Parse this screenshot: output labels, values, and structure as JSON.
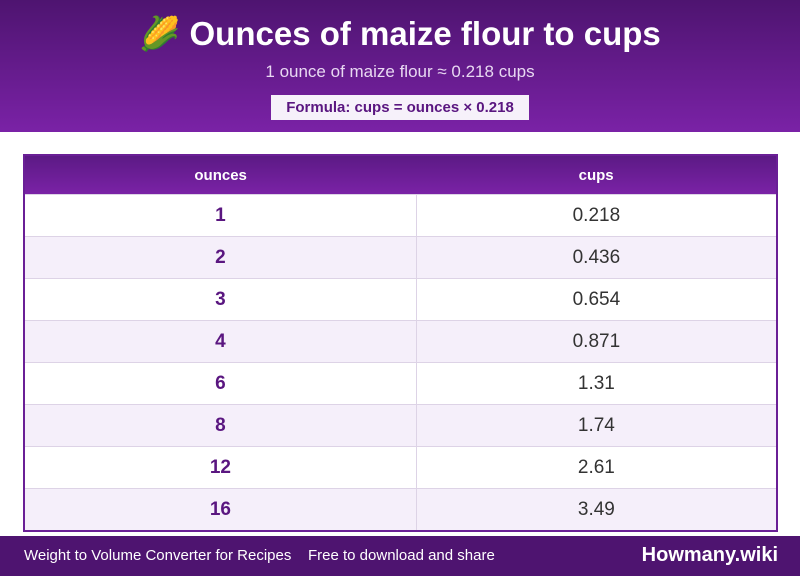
{
  "header": {
    "icon": "🌽",
    "title": "Ounces of maize flour to cups",
    "subtitle": "1 ounce of maize flour ≈ 0.218 cups",
    "formula": "Formula: cups = ounces × 0.218"
  },
  "table": {
    "columns": [
      "ounces",
      "cups"
    ],
    "rows": [
      [
        "1",
        "0.218"
      ],
      [
        "2",
        "0.436"
      ],
      [
        "3",
        "0.654"
      ],
      [
        "4",
        "0.871"
      ],
      [
        "6",
        "1.31"
      ],
      [
        "8",
        "1.74"
      ],
      [
        "12",
        "2.61"
      ],
      [
        "16",
        "3.49"
      ]
    ]
  },
  "footer": {
    "left": "Weight to Volume Converter for Recipes",
    "middle": "Free to download and share",
    "brand": "Howmany.wiki"
  }
}
